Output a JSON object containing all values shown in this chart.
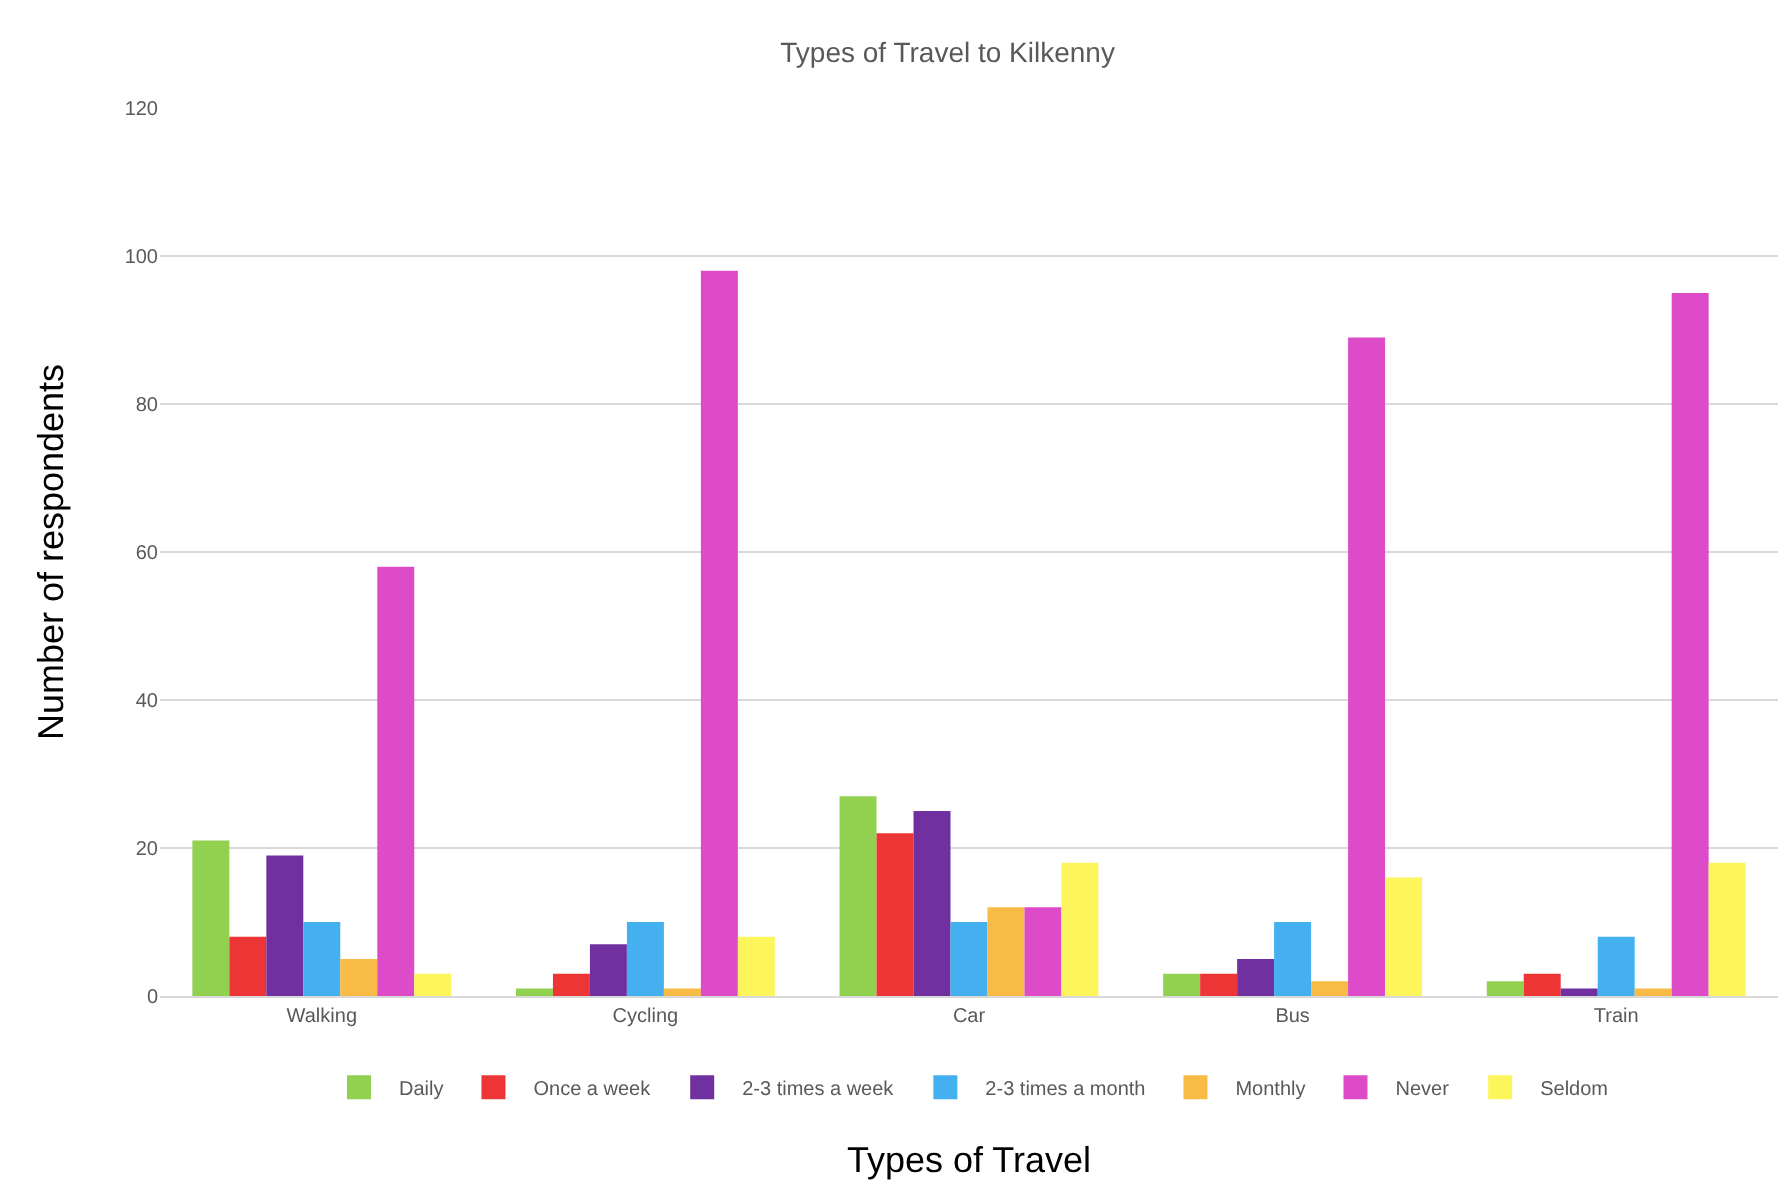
{
  "chart_data": {
    "type": "bar",
    "title": "Types of Travel to Kilkenny",
    "xlabel": "Types of Travel",
    "ylabel": "Number of respondents",
    "categories": [
      "Walking",
      "Cycling",
      "Car",
      "Bus",
      "Train"
    ],
    "series": [
      {
        "name": "Daily",
        "color": "#92d050",
        "values": [
          21,
          1,
          27,
          3,
          2
        ]
      },
      {
        "name": "Once a week",
        "color": "#ee3535",
        "values": [
          8,
          3,
          22,
          3,
          3
        ]
      },
      {
        "name": "2-3 times a week",
        "color": "#7030a0",
        "values": [
          19,
          7,
          25,
          5,
          1
        ]
      },
      {
        "name": "2-3 times a month",
        "color": "#45b0ef",
        "values": [
          10,
          10,
          10,
          10,
          8
        ]
      },
      {
        "name": "Monthly",
        "color": "#f8bb45",
        "values": [
          5,
          1,
          12,
          2,
          1
        ]
      },
      {
        "name": "Never",
        "color": "#dd4bc8",
        "values": [
          58,
          98,
          12,
          89,
          95
        ]
      },
      {
        "name": "Seldom",
        "color": "#fdf55c",
        "values": [
          3,
          8,
          18,
          16,
          18
        ]
      }
    ],
    "ylim": [
      0,
      120
    ],
    "yticks": [
      0,
      20,
      40,
      60,
      80,
      100,
      120
    ],
    "grid": "y",
    "legend": "bottom"
  }
}
